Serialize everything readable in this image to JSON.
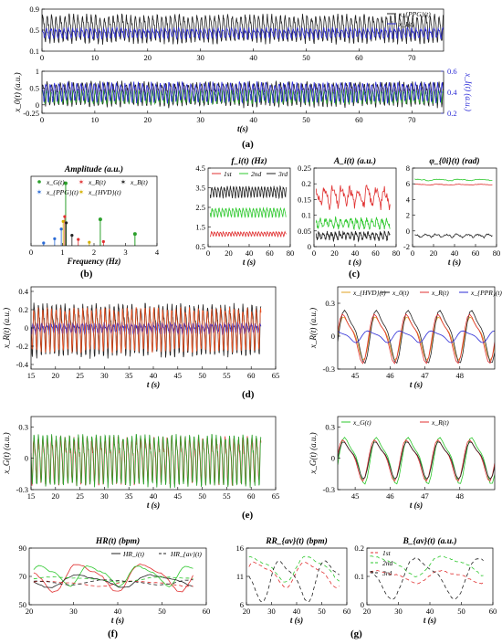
{
  "panel_labels": [
    "(a)",
    "(b)",
    "(c)",
    "(d)",
    "(e)",
    "(f)",
    "(g)"
  ],
  "chart_data": [
    {
      "id": "a1",
      "type": "line",
      "title": "",
      "xlabel": "",
      "ylabel": "",
      "xlim": [
        0,
        76
      ],
      "ylim": [
        0.1,
        0.9
      ],
      "xticks": [
        0,
        10,
        20,
        30,
        40,
        50,
        60,
        70
      ],
      "yticks": [
        0.1,
        0.5,
        0.9
      ],
      "legend_position": "top-right",
      "series": [
        {
          "name": "x_{PPG}(t)",
          "color": "#222222",
          "gen": {
            "type": "osc",
            "base": 0.55,
            "amp": 0.28,
            "freq": 1.2,
            "noise": 0.05,
            "seed": 3
          }
        },
        {
          "name": "x_I(t)",
          "color": "#2b2bd6",
          "gen": {
            "type": "osc",
            "base": 0.45,
            "amp": 0.1,
            "freq": 1.2,
            "phase": 1.2,
            "noise": 0.03,
            "seed": 7
          }
        }
      ]
    },
    {
      "id": "a2",
      "type": "line",
      "title": "",
      "xlabel": "t(s)",
      "ylabel": "x_0(t) (a.u.)",
      "ylabel2": "x_I(t) (a.u.)",
      "xlim": [
        0,
        76
      ],
      "ylim": [
        -0.25,
        1
      ],
      "xticks": [
        0,
        10,
        20,
        30,
        40,
        50,
        60,
        70
      ],
      "yticks": [
        -0.25,
        0,
        0.5,
        1
      ],
      "ylim2": [
        0.2,
        0.6
      ],
      "yticks2": [
        0.2,
        0.4,
        0.6
      ],
      "series": [
        {
          "name": "",
          "color": "#222222",
          "gen": {
            "type": "osc",
            "base": 0.35,
            "amp": 0.38,
            "freq": 1.2,
            "noise": 0.07,
            "seed": 11
          }
        },
        {
          "name": "",
          "color": "#2ca02c",
          "gen": {
            "type": "osc",
            "base": 0.25,
            "amp": 0.2,
            "freq": 1.2,
            "phase": 0.6,
            "noise": 0.05,
            "seed": 13
          }
        },
        {
          "name": "",
          "color": "#2b2bd6",
          "gen": {
            "type": "osc",
            "base": 0.4,
            "amp": 0.3,
            "freq": 1.2,
            "phase": 2.0,
            "noise": 0.06,
            "seed": 17
          }
        }
      ]
    },
    {
      "id": "b",
      "type": "scatter",
      "title": "Amplitude (a.u.)",
      "xlabel": "Frequency (Hz)",
      "ylabel": "",
      "xlim": [
        0,
        4
      ],
      "ylim": [
        0,
        1
      ],
      "xticks": [
        0,
        1,
        2,
        3,
        4
      ],
      "yticks": [],
      "legend_position": "top",
      "legend": [
        {
          "name": "x_G(t)",
          "color": "#2ca02c",
          "marker": "dot"
        },
        {
          "name": "x_R(t)",
          "color": "#e03030",
          "marker": "star"
        },
        {
          "name": "x_B(t)",
          "color": "#222222",
          "marker": "star"
        },
        {
          "name": "x_{PPG}(t)",
          "color": "#2b6bd6",
          "marker": "star"
        },
        {
          "name": "x_{HVD}(t)",
          "color": "#d4b000",
          "marker": "star"
        }
      ],
      "stems": [
        {
          "x": 1.1,
          "y": 0.9,
          "color": "#2ca02c"
        },
        {
          "x": 2.2,
          "y": 0.38,
          "color": "#2ca02c"
        },
        {
          "x": 3.3,
          "y": 0.17,
          "color": "#2ca02c"
        }
      ],
      "peaks": [
        {
          "x": 1.07,
          "y": 0.42,
          "color": "#e03030"
        },
        {
          "x": 1.02,
          "y": 0.35,
          "color": "#d4b000"
        },
        {
          "x": 1.12,
          "y": 0.33,
          "color": "#222222"
        },
        {
          "x": 0.96,
          "y": 0.24,
          "color": "#2b6bd6"
        },
        {
          "x": 1.3,
          "y": 0.15,
          "color": "#222222"
        },
        {
          "x": 1.5,
          "y": 0.09,
          "color": "#e03030"
        },
        {
          "x": 0.75,
          "y": 0.1,
          "color": "#2b6bd6"
        },
        {
          "x": 1.85,
          "y": 0.05,
          "color": "#d4b000"
        },
        {
          "x": 2.3,
          "y": 0.06,
          "color": "#e03030"
        },
        {
          "x": 0.4,
          "y": 0.04,
          "color": "#2b6bd6"
        }
      ]
    },
    {
      "id": "c1",
      "type": "line",
      "title": "f_i(t) (Hz)",
      "xlabel": "t (s)",
      "ylabel": "",
      "xlim": [
        0,
        80
      ],
      "ylim": [
        0.5,
        4.5
      ],
      "xticks": [
        0,
        20,
        40,
        60,
        80
      ],
      "yticks": [
        0.5,
        1.5,
        2.5,
        3.5,
        4.5
      ],
      "legend_position": "top",
      "series": [
        {
          "name": "1st",
          "color": "#e03030",
          "gen": {
            "type": "osc",
            "base": 1.15,
            "amp": 0.12,
            "freq": 0.35,
            "noise": 0.02,
            "seed": 21,
            "t0": 2,
            "t1": 76
          }
        },
        {
          "name": "2nd",
          "color": "#2ec82e",
          "gen": {
            "type": "osc",
            "base": 2.25,
            "amp": 0.25,
            "freq": 0.3,
            "noise": 0.04,
            "seed": 23,
            "t0": 2,
            "t1": 76
          }
        },
        {
          "name": "3rd",
          "color": "#222222",
          "gen": {
            "type": "osc",
            "base": 3.3,
            "amp": 0.3,
            "freq": 0.33,
            "noise": 0.05,
            "seed": 25,
            "t0": 2,
            "t1": 76
          }
        }
      ]
    },
    {
      "id": "c2",
      "type": "line",
      "title": "A_i(t) (a.u.)",
      "xlabel": "t (s)",
      "ylabel": "",
      "xlim": [
        0,
        80
      ],
      "ylim": [
        0,
        0.25
      ],
      "xticks": [
        0,
        20,
        40,
        60,
        80
      ],
      "yticks": [
        0,
        0.05,
        0.1,
        0.15,
        0.2,
        0.25
      ],
      "series": [
        {
          "name": "",
          "color": "#e03030",
          "gen": {
            "type": "osc",
            "base": 0.16,
            "amp": 0.03,
            "freq": 0.12,
            "noise": 0.015,
            "seed": 31,
            "t0": 2,
            "t1": 74
          }
        },
        {
          "name": "",
          "color": "#2ec82e",
          "gen": {
            "type": "osc",
            "base": 0.075,
            "amp": 0.015,
            "freq": 0.2,
            "noise": 0.008,
            "seed": 33,
            "t0": 2,
            "t1": 74
          }
        },
        {
          "name": "",
          "color": "#222222",
          "gen": {
            "type": "osc",
            "base": 0.035,
            "amp": 0.012,
            "freq": 0.25,
            "noise": 0.006,
            "seed": 35,
            "t0": 2,
            "t1": 74
          }
        }
      ]
    },
    {
      "id": "c3",
      "type": "line",
      "title": "φ_{0i}(t) (rad)",
      "xlabel": "t (s)",
      "ylabel": "",
      "xlim": [
        0,
        80
      ],
      "ylim": [
        -2,
        8
      ],
      "xticks": [
        0,
        20,
        40,
        60,
        80
      ],
      "yticks": [
        -2,
        0,
        2,
        4,
        6,
        8
      ],
      "series": [
        {
          "name": "",
          "color": "#2ec82e",
          "gen": {
            "type": "osc",
            "base": 6.5,
            "amp": 0.1,
            "freq": 0.05,
            "noise": 0.05,
            "seed": 41,
            "t0": 2,
            "t1": 76
          }
        },
        {
          "name": "",
          "color": "#e03030",
          "gen": {
            "type": "osc",
            "base": 5.9,
            "amp": 0.05,
            "freq": 0.05,
            "noise": 0.03,
            "seed": 43,
            "t0": 2,
            "t1": 76
          }
        },
        {
          "name": "",
          "color": "#222222",
          "gen": {
            "type": "osc",
            "base": -0.6,
            "amp": 0.2,
            "freq": 0.1,
            "noise": 0.1,
            "seed": 45,
            "t0": 2,
            "t1": 76
          }
        }
      ]
    },
    {
      "id": "d1",
      "type": "line",
      "title": "",
      "xlabel": "t (s)",
      "ylabel": "x_R(t) (a.u.)",
      "xlim": [
        15,
        65
      ],
      "ylim": [
        -0.45,
        0.45
      ],
      "xticks": [
        15,
        20,
        25,
        30,
        35,
        40,
        45,
        50,
        55,
        60,
        65
      ],
      "yticks": [
        -0.4,
        -0.2,
        0,
        0.2,
        0.4
      ],
      "series": [
        {
          "name": "",
          "color": "#222222",
          "gen": {
            "type": "osc",
            "base": 0.0,
            "amp": 0.3,
            "freq": 1.1,
            "noise": 0.04,
            "seed": 51,
            "t0": 15,
            "t1": 62
          }
        },
        {
          "name": "",
          "color": "#2b2bd6",
          "gen": {
            "type": "osc",
            "base": 0.0,
            "amp": 0.06,
            "freq": 1.1,
            "phase": 1.5,
            "noise": 0.02,
            "seed": 53,
            "t0": 15,
            "t1": 62
          }
        },
        {
          "name": "",
          "color": "#e85020",
          "gen": {
            "type": "osc",
            "base": 0.0,
            "amp": 0.25,
            "freq": 1.1,
            "phase": 0.3,
            "noise": 0.03,
            "seed": 55,
            "t0": 15,
            "t1": 62
          }
        }
      ]
    },
    {
      "id": "d2",
      "type": "line",
      "title": "",
      "xlabel": "t (s)",
      "ylabel": "x_R(t) (a.u.)",
      "xlim": [
        44.5,
        49
      ],
      "ylim": [
        -0.3,
        0.45
      ],
      "xticks": [
        45,
        46,
        47,
        48
      ],
      "yticks": [
        -0.3,
        0,
        0.3
      ],
      "legend_position": "top",
      "series": [
        {
          "name": "x_{HVD}(t)",
          "color": "#e0a020",
          "gen": {
            "type": "osc",
            "base": 0.0,
            "amp": 0.22,
            "freq": 1.1,
            "phase": 0.2,
            "noise": 0.0,
            "seed": 61
          }
        },
        {
          "name": "x_0(t)",
          "color": "#222222",
          "gen": {
            "type": "osc",
            "base": 0.02,
            "amp": 0.27,
            "freq": 1.1,
            "noise": 0.0,
            "seed": 63
          }
        },
        {
          "name": "x_R(t)",
          "color": "#e03030",
          "gen": {
            "type": "osc",
            "base": 0.0,
            "amp": 0.25,
            "freq": 1.1,
            "phase": 0.35,
            "noise": 0.0,
            "seed": 65
          }
        },
        {
          "name": "x_{PPR}(t)",
          "color": "#2b2bd6",
          "gen": {
            "type": "osc",
            "base": 0.0,
            "amp": 0.06,
            "freq": 1.1,
            "phase": 1.7,
            "noise": 0.0,
            "seed": 67
          }
        }
      ]
    },
    {
      "id": "e1",
      "type": "line",
      "title": "",
      "xlabel": "t (s)",
      "ylabel": "x_G(t) (a.u.)",
      "xlim": [
        15,
        65
      ],
      "ylim": [
        -0.3,
        0.4
      ],
      "xticks": [
        15,
        20,
        25,
        30,
        35,
        40,
        45,
        50,
        55,
        60,
        65
      ],
      "yticks": [
        -0.3,
        0,
        0.3
      ],
      "series": [
        {
          "name": "",
          "color": "#e03030",
          "gen": {
            "type": "osc",
            "base": 0.0,
            "amp": 0.24,
            "freq": 1.1,
            "phase": 0.3,
            "noise": 0.03,
            "seed": 71,
            "t0": 15,
            "t1": 62
          }
        },
        {
          "name": "",
          "color": "#2ca02c",
          "gen": {
            "type": "osc",
            "base": 0.0,
            "amp": 0.26,
            "freq": 1.1,
            "noise": 0.03,
            "seed": 73,
            "t0": 15,
            "t1": 62
          }
        }
      ]
    },
    {
      "id": "e2",
      "type": "line",
      "title": "",
      "xlabel": "t (s)",
      "ylabel": "x_G(t) (a.u.)",
      "xlim": [
        44.5,
        49
      ],
      "ylim": [
        -0.3,
        0.4
      ],
      "xticks": [
        45,
        46,
        47,
        48
      ],
      "yticks": [
        -0.3,
        0,
        0.3
      ],
      "legend_position": "top",
      "series": [
        {
          "name": "x_G(t)",
          "color": "#2ec82e",
          "gen": {
            "type": "osc",
            "base": 0.0,
            "amp": 0.25,
            "freq": 1.1,
            "noise": 0.0,
            "seed": 81
          }
        },
        {
          "name": "x_R(t)",
          "color": "#e03030",
          "gen": {
            "type": "osc",
            "base": 0.0,
            "amp": 0.22,
            "freq": 1.1,
            "phase": 0.35,
            "noise": 0.0,
            "seed": 83
          }
        },
        {
          "name": "",
          "color": "#222222",
          "gen": {
            "type": "osc",
            "base": 0.0,
            "amp": 0.2,
            "freq": 1.1,
            "phase": 0.2,
            "noise": 0.0,
            "seed": 85
          }
        }
      ]
    },
    {
      "id": "f",
      "type": "line",
      "title": "HR(t) (bpm)",
      "xlabel": "t (s)",
      "ylabel": "",
      "xlim": [
        20,
        60
      ],
      "ylim": [
        50,
        90
      ],
      "xticks": [
        20,
        30,
        40,
        50,
        60
      ],
      "yticks": [
        50,
        70,
        90
      ],
      "legend_position": "top-right",
      "legend": [
        {
          "name": "HR_i(t)",
          "color": "#222222",
          "dash": false
        },
        {
          "name": "HR_{av}(t)",
          "color": "#222222",
          "dash": true
        }
      ],
      "series": [
        {
          "name": "",
          "color": "#e03030",
          "gen": {
            "type": "osc",
            "base": 70,
            "amp": 11,
            "freq": 0.07,
            "noise": 0.6,
            "seed": 91,
            "t0": 21,
            "t1": 57
          }
        },
        {
          "name": "",
          "color": "#2ec82e",
          "gen": {
            "type": "osc",
            "base": 71,
            "amp": 8,
            "freq": 0.09,
            "phase": 1.0,
            "noise": 0.5,
            "seed": 93,
            "t0": 21,
            "t1": 57
          }
        },
        {
          "name": "",
          "color": "#222222",
          "gen": {
            "type": "osc",
            "base": 67,
            "amp": 5,
            "freq": 0.06,
            "phase": 2.0,
            "noise": 0.4,
            "seed": 95,
            "t0": 21,
            "t1": 57
          }
        },
        {
          "name": "",
          "color": "#e03030",
          "dash": true,
          "gen": {
            "type": "osc",
            "base": 65,
            "amp": 2,
            "freq": 0.05,
            "noise": 0.2,
            "seed": 97,
            "t0": 21,
            "t1": 57
          }
        },
        {
          "name": "",
          "color": "#2ec82e",
          "dash": true,
          "gen": {
            "type": "osc",
            "base": 68,
            "amp": 2,
            "freq": 0.04,
            "phase": 1.0,
            "noise": 0.2,
            "seed": 99,
            "t0": 21,
            "t1": 57
          }
        },
        {
          "name": "",
          "color": "#222222",
          "dash": true,
          "gen": {
            "type": "osc",
            "base": 66,
            "amp": 2,
            "freq": 0.05,
            "phase": 2.0,
            "noise": 0.2,
            "seed": 101,
            "t0": 21,
            "t1": 57
          }
        }
      ]
    },
    {
      "id": "g1",
      "type": "line",
      "title": "RR_{av}(t) (bpm)",
      "xlabel": "t (s)",
      "ylabel": "",
      "xlim": [
        20,
        60
      ],
      "ylim": [
        6,
        16
      ],
      "xticks": [
        20,
        30,
        40,
        50,
        60
      ],
      "yticks": [
        6,
        11,
        16
      ],
      "series": [
        {
          "name": "",
          "color": "#e03030",
          "dash": true,
          "gen": {
            "type": "osc",
            "base": 11.5,
            "amp": 2.5,
            "freq": 0.05,
            "noise": 0.1,
            "seed": 111,
            "t0": 21,
            "t1": 57
          }
        },
        {
          "name": "",
          "color": "#2ec82e",
          "dash": true,
          "gen": {
            "type": "osc",
            "base": 12.5,
            "amp": 2.5,
            "freq": 0.045,
            "phase": 1.2,
            "noise": 0.1,
            "seed": 113,
            "t0": 21,
            "t1": 57
          }
        },
        {
          "name": "",
          "color": "#222222",
          "dash": true,
          "gen": {
            "type": "osc",
            "base": 10.5,
            "amp": 4.0,
            "freq": 0.055,
            "phase": 2.2,
            "noise": 0.1,
            "seed": 115,
            "t0": 21,
            "t1": 57
          }
        }
      ]
    },
    {
      "id": "g2",
      "type": "line",
      "title": "B_{av}(t) (a.u.)",
      "xlabel": "t (s)",
      "ylabel": "",
      "xlim": [
        20,
        60
      ],
      "ylim": [
        0,
        0.2
      ],
      "xticks": [
        20,
        30,
        40,
        50,
        60
      ],
      "yticks": [
        0,
        0.1,
        0.2
      ],
      "legend_position": "top-left",
      "series": [
        {
          "name": "1st",
          "color": "#e03030",
          "dash": true,
          "gen": {
            "type": "osc",
            "base": 0.1,
            "amp": 0.025,
            "freq": 0.05,
            "noise": 0.002,
            "seed": 121,
            "t0": 21,
            "t1": 57
          }
        },
        {
          "name": "2nd",
          "color": "#2ec82e",
          "dash": true,
          "gen": {
            "type": "osc",
            "base": 0.14,
            "amp": 0.04,
            "freq": 0.045,
            "phase": 1.2,
            "noise": 0.003,
            "seed": 123,
            "t0": 21,
            "t1": 57
          }
        },
        {
          "name": "3rd",
          "color": "#222222",
          "dash": true,
          "gen": {
            "type": "osc",
            "base": 0.1,
            "amp": 0.08,
            "freq": 0.05,
            "phase": 2.5,
            "noise": 0.003,
            "seed": 125,
            "t0": 21,
            "t1": 57
          }
        }
      ]
    }
  ]
}
